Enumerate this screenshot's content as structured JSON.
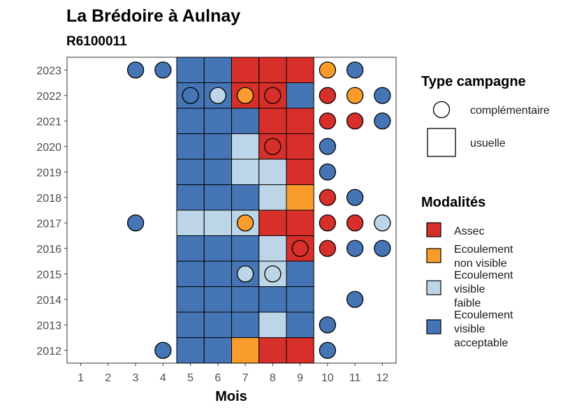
{
  "chart_data": {
    "type": "heatmap",
    "title": "La Brédoire à Aulnay",
    "subtitle": "R6100011",
    "xlabel": "Mois",
    "ylabel": "",
    "x_ticks": [
      "1",
      "2",
      "3",
      "4",
      "5",
      "6",
      "7",
      "8",
      "9",
      "10",
      "11",
      "12"
    ],
    "y_ticks": [
      "2012",
      "2013",
      "2014",
      "2015",
      "2016",
      "2017",
      "2018",
      "2019",
      "2020",
      "2021",
      "2022",
      "2023"
    ],
    "xlim": [
      0.5,
      12.5
    ],
    "ylim": [
      2011.5,
      2023.5
    ],
    "grid": false,
    "legend_placement": "right",
    "legend_shape": {
      "title": "Type campagne",
      "items": [
        {
          "key": "complementaire",
          "label": "complémentaire",
          "shape": "circle"
        },
        {
          "key": "usuelle",
          "label": "usuelle",
          "shape": "square"
        }
      ]
    },
    "legend_fill": {
      "title": "Modalités",
      "items": [
        {
          "key": "assec",
          "label_lines": [
            "Assec"
          ],
          "color": "#d7302a"
        },
        {
          "key": "ecnv",
          "label_lines": [
            "Ecoulement",
            "non visible"
          ],
          "color": "#fa9c2c"
        },
        {
          "key": "ecvf",
          "label_lines": [
            "Ecoulement",
            "visible",
            "faible"
          ],
          "color": "#bcd6e8"
        },
        {
          "key": "ecva",
          "label_lines": [
            "Ecoulement",
            "visible",
            "acceptable"
          ],
          "color": "#4575b4"
        }
      ]
    },
    "usuelle": {
      "2023": {
        "5": "ecva",
        "6": "ecva",
        "7": "assec",
        "8": "assec",
        "9": "assec"
      },
      "2022": {
        "5": "ecva",
        "6": "ecva",
        "7": "assec",
        "8": "assec",
        "9": "ecva"
      },
      "2021": {
        "5": "ecva",
        "6": "ecva",
        "7": "ecva",
        "8": "assec",
        "9": "assec"
      },
      "2020": {
        "5": "ecva",
        "6": "ecva",
        "7": "ecvf",
        "8": "assec",
        "9": "assec"
      },
      "2019": {
        "5": "ecva",
        "6": "ecva",
        "7": "ecvf",
        "8": "ecvf",
        "9": "assec"
      },
      "2018": {
        "5": "ecva",
        "6": "ecva",
        "7": "ecva",
        "8": "ecvf",
        "9": "ecnv"
      },
      "2017": {
        "5": "ecvf",
        "6": "ecvf",
        "7": "ecvf",
        "8": "assec",
        "9": "assec"
      },
      "2016": {
        "5": "ecva",
        "6": "ecva",
        "7": "ecva",
        "8": "ecvf",
        "9": "assec"
      },
      "2015": {
        "5": "ecva",
        "6": "ecva",
        "7": "ecva",
        "8": "ecvf",
        "9": "ecva"
      },
      "2014": {
        "5": "ecva",
        "6": "ecva",
        "7": "ecva",
        "8": "ecva",
        "9": "ecva"
      },
      "2013": {
        "5": "ecva",
        "6": "ecva",
        "7": "ecva",
        "8": "ecvf",
        "9": "ecva"
      },
      "2012": {
        "5": "ecva",
        "6": "ecva",
        "7": "ecnv",
        "8": "assec",
        "9": "assec"
      }
    },
    "complementaire": [
      {
        "year": 2023,
        "month": 3,
        "mod": "ecva"
      },
      {
        "year": 2023,
        "month": 4,
        "mod": "ecva"
      },
      {
        "year": 2023,
        "month": 10,
        "mod": "ecnv"
      },
      {
        "year": 2023,
        "month": 11,
        "mod": "ecva"
      },
      {
        "year": 2022,
        "month": 5,
        "mod": "ecva"
      },
      {
        "year": 2022,
        "month": 6,
        "mod": "ecvf"
      },
      {
        "year": 2022,
        "month": 7,
        "mod": "ecnv"
      },
      {
        "year": 2022,
        "month": 8,
        "mod": "assec"
      },
      {
        "year": 2022,
        "month": 10,
        "mod": "assec"
      },
      {
        "year": 2022,
        "month": 11,
        "mod": "ecnv"
      },
      {
        "year": 2022,
        "month": 12,
        "mod": "ecva"
      },
      {
        "year": 2021,
        "month": 10,
        "mod": "assec"
      },
      {
        "year": 2021,
        "month": 11,
        "mod": "assec"
      },
      {
        "year": 2021,
        "month": 12,
        "mod": "ecva"
      },
      {
        "year": 2020,
        "month": 8,
        "mod": "assec"
      },
      {
        "year": 2020,
        "month": 10,
        "mod": "ecva"
      },
      {
        "year": 2019,
        "month": 10,
        "mod": "ecva"
      },
      {
        "year": 2018,
        "month": 10,
        "mod": "assec"
      },
      {
        "year": 2018,
        "month": 11,
        "mod": "ecva"
      },
      {
        "year": 2017,
        "month": 3,
        "mod": "ecva"
      },
      {
        "year": 2017,
        "month": 7,
        "mod": "ecnv"
      },
      {
        "year": 2017,
        "month": 10,
        "mod": "assec"
      },
      {
        "year": 2017,
        "month": 11,
        "mod": "assec"
      },
      {
        "year": 2017,
        "month": 12,
        "mod": "ecvf"
      },
      {
        "year": 2016,
        "month": 9,
        "mod": "assec"
      },
      {
        "year": 2016,
        "month": 10,
        "mod": "assec"
      },
      {
        "year": 2016,
        "month": 11,
        "mod": "ecva"
      },
      {
        "year": 2016,
        "month": 12,
        "mod": "ecva"
      },
      {
        "year": 2015,
        "month": 7,
        "mod": "ecvf"
      },
      {
        "year": 2015,
        "month": 8,
        "mod": "ecvf"
      },
      {
        "year": 2014,
        "month": 11,
        "mod": "ecva"
      },
      {
        "year": 2013,
        "month": 10,
        "mod": "ecva"
      },
      {
        "year": 2012,
        "month": 4,
        "mod": "ecva"
      },
      {
        "year": 2012,
        "month": 10,
        "mod": "ecva"
      }
    ]
  }
}
